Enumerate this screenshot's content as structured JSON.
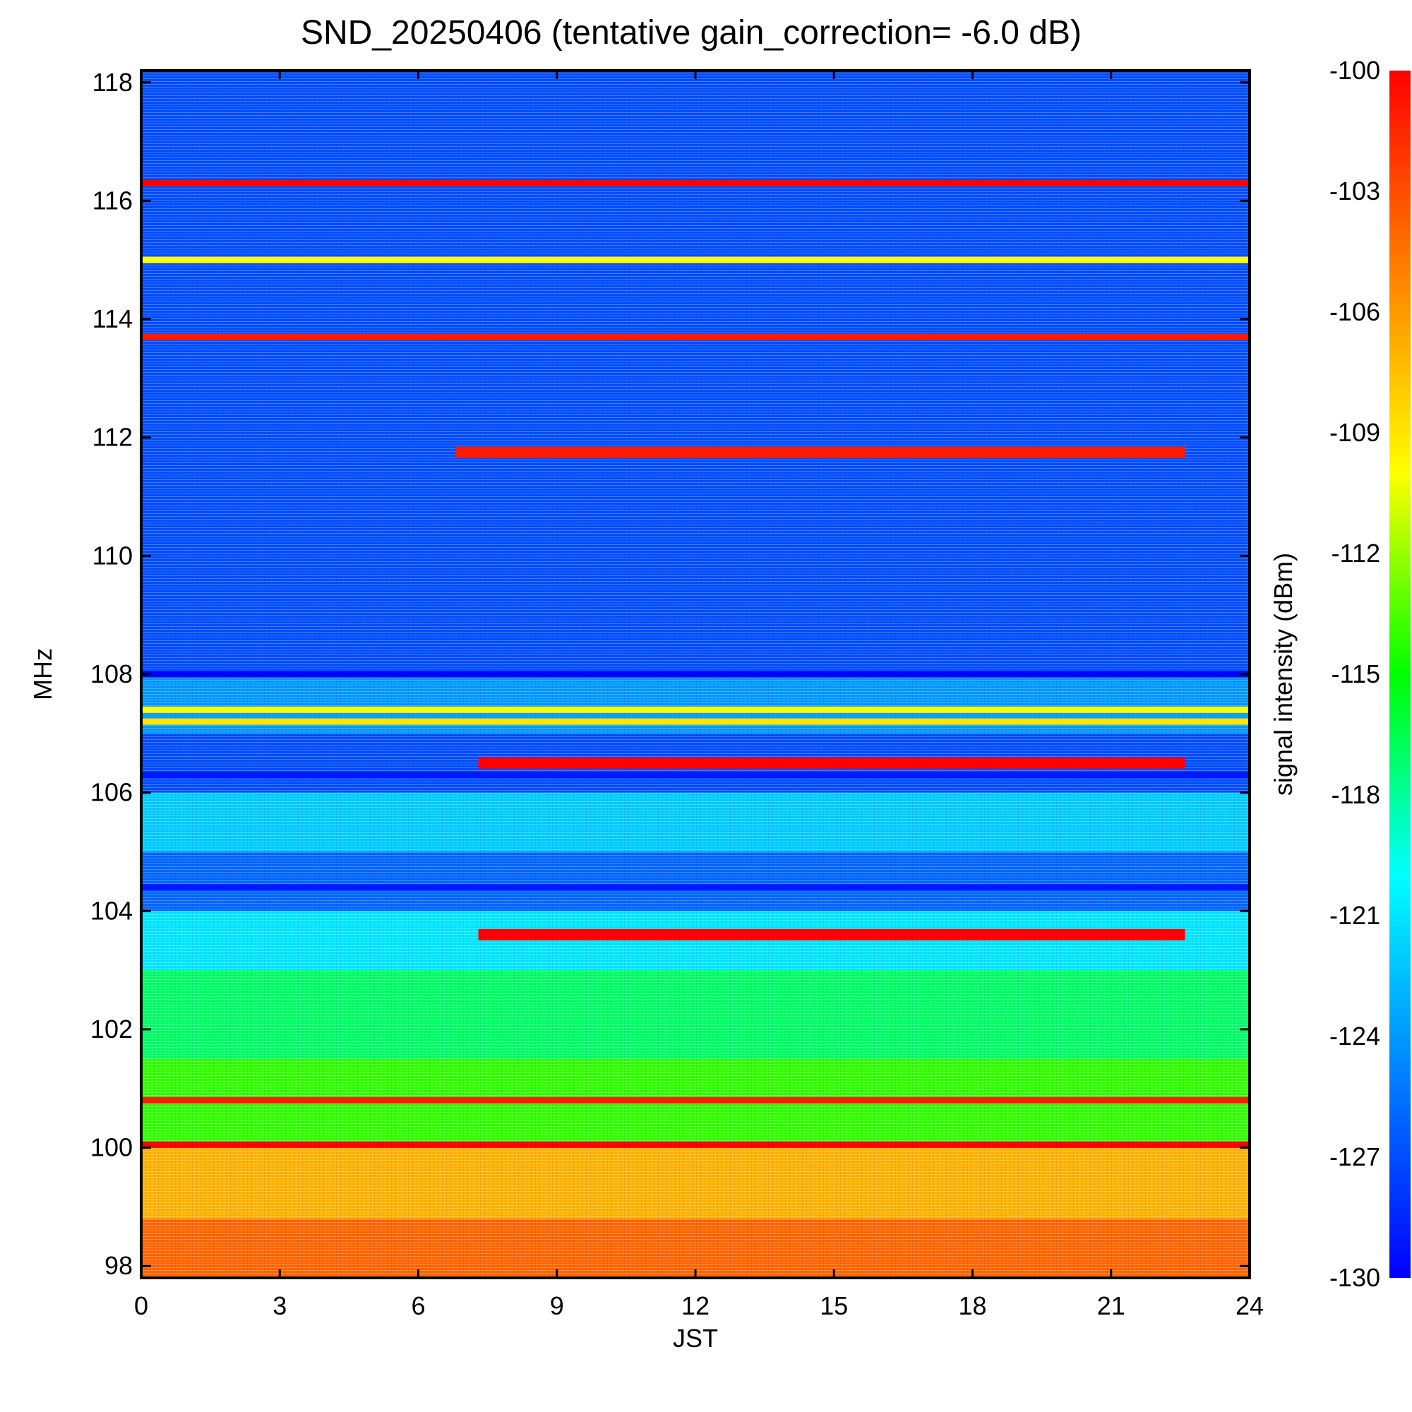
{
  "chart_data": {
    "type": "heatmap",
    "title": "SND_20250406 (tentative gain_correction= -6.0 dB)",
    "xlabel": "JST",
    "ylabel": "MHz",
    "colorbar_label": "signal intensity (dBm)",
    "xlim": [
      0,
      24
    ],
    "ylim": [
      97.8,
      118.2
    ],
    "zlim": [
      -130,
      -100
    ],
    "x_ticks": [
      "0",
      "3",
      "6",
      "9",
      "12",
      "15",
      "18",
      "21",
      "24"
    ],
    "y_ticks": [
      "98",
      "100",
      "102",
      "104",
      "106",
      "108",
      "110",
      "112",
      "114",
      "116",
      "118"
    ],
    "colorbar_ticks": [
      "-100",
      "-103",
      "-106",
      "-109",
      "-112",
      "-115",
      "-118",
      "-121",
      "-124",
      "-127",
      "-130"
    ],
    "colormap": [
      "#0000ff",
      "#0080ff",
      "#00ffff",
      "#00ff00",
      "#ffff00",
      "#ff8000",
      "#ff0000"
    ],
    "background_levels": [
      {
        "mhz_from": 97.8,
        "mhz_to": 98.8,
        "dbm": -104
      },
      {
        "mhz_from": 98.8,
        "mhz_to": 100.0,
        "dbm": -107
      },
      {
        "mhz_from": 100.0,
        "mhz_to": 101.5,
        "dbm": -114
      },
      {
        "mhz_from": 101.5,
        "mhz_to": 103.0,
        "dbm": -117
      },
      {
        "mhz_from": 103.0,
        "mhz_to": 104.0,
        "dbm": -121
      },
      {
        "mhz_from": 104.0,
        "mhz_to": 105.0,
        "dbm": -126
      },
      {
        "mhz_from": 105.0,
        "mhz_to": 106.0,
        "dbm": -122
      },
      {
        "mhz_from": 106.0,
        "mhz_to": 107.0,
        "dbm": -127
      },
      {
        "mhz_from": 107.0,
        "mhz_to": 108.0,
        "dbm": -124
      },
      {
        "mhz_from": 108.0,
        "mhz_to": 118.2,
        "dbm": -127
      }
    ],
    "signals": [
      {
        "mhz": 116.3,
        "start_jst": 0.0,
        "end_jst": 24.0,
        "dbm": -100
      },
      {
        "mhz": 115.0,
        "start_jst": 0.0,
        "end_jst": 24.0,
        "dbm": -110
      },
      {
        "mhz": 113.7,
        "start_jst": 0.0,
        "end_jst": 24.0,
        "dbm": -101
      },
      {
        "mhz": 111.75,
        "start_jst": 6.8,
        "end_jst": 22.6,
        "dbm": -101
      },
      {
        "mhz": 108.0,
        "start_jst": 0.0,
        "end_jst": 24.0,
        "dbm": -130
      },
      {
        "mhz": 107.4,
        "start_jst": 0.0,
        "end_jst": 24.0,
        "dbm": -110
      },
      {
        "mhz": 107.2,
        "start_jst": 0.0,
        "end_jst": 24.0,
        "dbm": -109
      },
      {
        "mhz": 106.5,
        "start_jst": 7.3,
        "end_jst": 22.6,
        "dbm": -100
      },
      {
        "mhz": 106.3,
        "start_jst": 0.0,
        "end_jst": 24.0,
        "dbm": -129
      },
      {
        "mhz": 104.4,
        "start_jst": 0.0,
        "end_jst": 24.0,
        "dbm": -129
      },
      {
        "mhz": 103.6,
        "start_jst": 7.3,
        "end_jst": 22.6,
        "dbm": -100
      },
      {
        "mhz": 100.8,
        "start_jst": 0.0,
        "end_jst": 24.0,
        "dbm": -101
      },
      {
        "mhz": 100.05,
        "start_jst": 0.0,
        "end_jst": 24.0,
        "dbm": -100
      }
    ]
  }
}
